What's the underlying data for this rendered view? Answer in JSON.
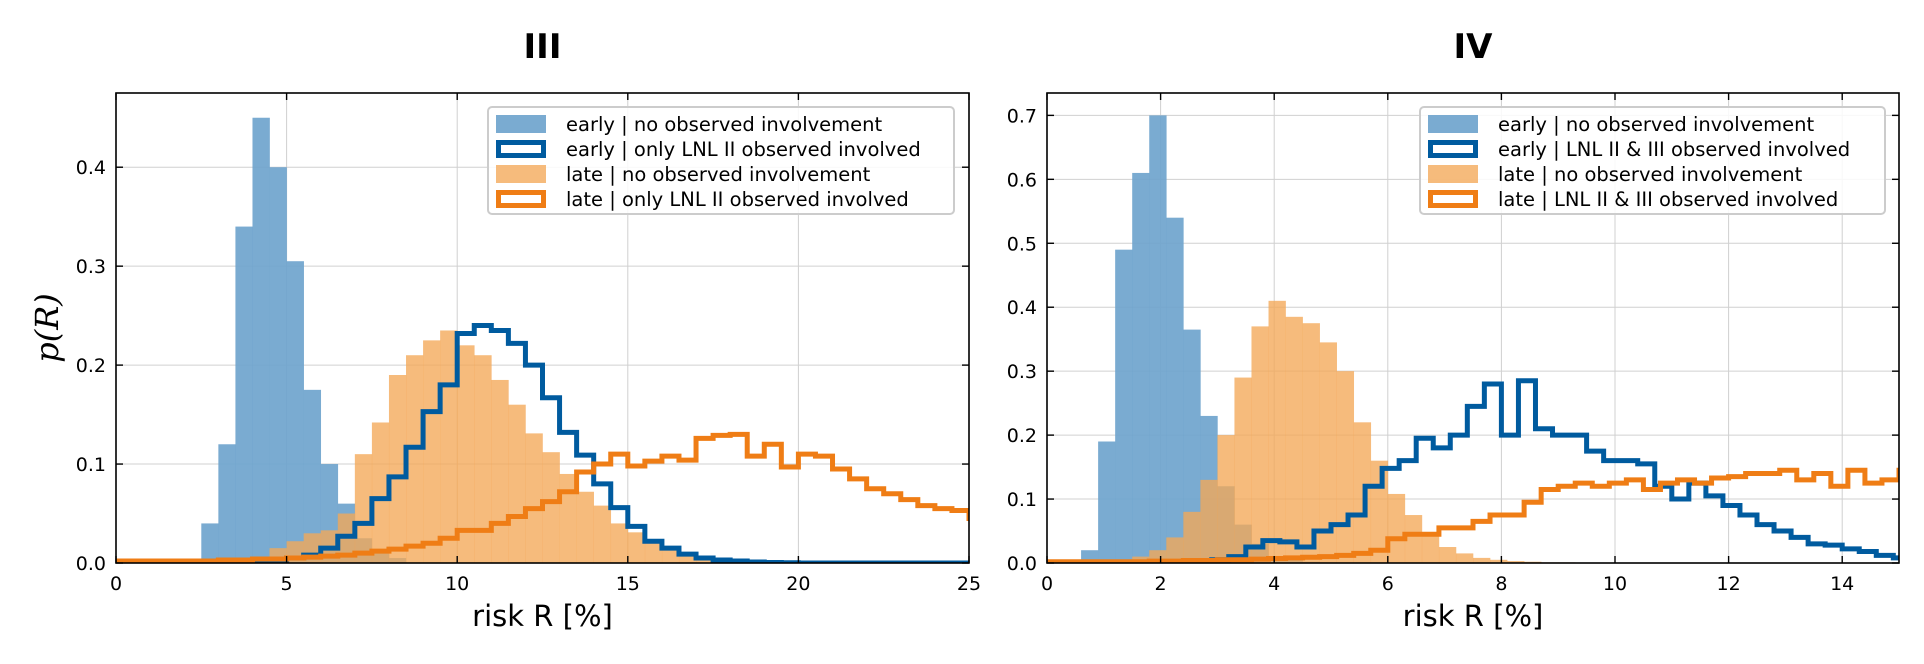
{
  "figure": {
    "ylabel": "p(R)"
  },
  "chart_data": [
    {
      "type": "histogram",
      "title": "III",
      "xlabel": "risk R [%]",
      "ylabel": "p(R)",
      "xlim": [
        0,
        25
      ],
      "ylim": [
        0,
        0.475
      ],
      "xticks": [
        0,
        5,
        10,
        15,
        20,
        25
      ],
      "yticks": [
        0.0,
        0.1,
        0.2,
        0.3,
        0.4
      ],
      "ytick_labels": [
        "0.0",
        "0.1",
        "0.2",
        "0.3",
        "0.4"
      ],
      "grid": true,
      "legend_position": "top-right",
      "series": [
        {
          "name": "early | no observed involvement",
          "style": "filled",
          "color": "#6fa4cd",
          "opacity": 0.92,
          "x0": 2.5,
          "bin_width": 0.5,
          "values": [
            0.04,
            0.12,
            0.34,
            0.45,
            0.4,
            0.305,
            0.175,
            0.1,
            0.06,
            0.025,
            0.01,
            0.005
          ]
        },
        {
          "name": "early | only LNL II observed involved",
          "style": "step",
          "color": "#005b9f",
          "linewidth": 5,
          "x0": 4.0,
          "bin_width": 0.5,
          "values": [
            0,
            0.003,
            0.005,
            0.008,
            0.015,
            0.027,
            0.04,
            0.065,
            0.087,
            0.117,
            0.153,
            0.18,
            0.232,
            0.24,
            0.235,
            0.222,
            0.2,
            0.167,
            0.132,
            0.109,
            0.08,
            0.056,
            0.037,
            0.022,
            0.015,
            0.009,
            0.005,
            0.003,
            0.002,
            0.001,
            0.0005,
            0.0003,
            0,
            0,
            0,
            0,
            0,
            0,
            0,
            0,
            0,
            0
          ]
        },
        {
          "name": "late | no observed involvement",
          "style": "filled",
          "color": "#f4a857",
          "opacity": 0.78,
          "x0": 0.0,
          "bin_width": 0.5,
          "values": [
            0.002,
            0.002,
            0.002,
            0.002,
            0.002,
            0.002,
            0.003,
            0.004,
            0.005,
            0.015,
            0.022,
            0.03,
            0.033,
            0.05,
            0.11,
            0.142,
            0.19,
            0.21,
            0.225,
            0.235,
            0.22,
            0.21,
            0.185,
            0.16,
            0.131,
            0.112,
            0.09,
            0.072,
            0.058,
            0.04,
            0.031,
            0.023,
            0.015,
            0.01,
            0.007,
            0.005,
            0.003,
            0.002,
            0.001,
            0.001,
            0.001,
            0.0005,
            0.0005,
            0.0003,
            0.0003,
            0.0002,
            0.0002,
            0.0001,
            0.0001,
            0.0001
          ]
        },
        {
          "name": "late | only LNL II observed involved",
          "style": "step",
          "color": "#ef7d15",
          "linewidth": 5,
          "x0": 0.0,
          "bin_width": 0.5,
          "values": [
            0.002,
            0.002,
            0.002,
            0.002,
            0.002,
            0.002,
            0.003,
            0.003,
            0.004,
            0.004,
            0.005,
            0.006,
            0.007,
            0.008,
            0.01,
            0.012,
            0.014,
            0.017,
            0.02,
            0.025,
            0.033,
            0.033,
            0.04,
            0.047,
            0.055,
            0.062,
            0.072,
            0.092,
            0.1,
            0.11,
            0.098,
            0.103,
            0.108,
            0.104,
            0.126,
            0.129,
            0.13,
            0.108,
            0.12,
            0.097,
            0.11,
            0.108,
            0.095,
            0.085,
            0.075,
            0.07,
            0.064,
            0.058,
            0.055,
            0.053,
            0.045,
            0.038,
            0.03,
            0.025,
            0.023,
            0.027,
            0.022,
            0.015,
            0.018,
            0.02,
            0.013,
            0.013,
            0.01,
            0.01,
            0.008,
            0.01,
            0.012,
            0.008,
            0.006,
            0.006
          ]
        }
      ]
    },
    {
      "type": "histogram",
      "title": "IV",
      "xlabel": "risk R [%]",
      "ylabel": "",
      "xlim": [
        0,
        15
      ],
      "ylim": [
        0,
        0.735
      ],
      "xticks": [
        0,
        2,
        4,
        6,
        8,
        10,
        12,
        14
      ],
      "yticks": [
        0.0,
        0.1,
        0.2,
        0.3,
        0.4,
        0.5,
        0.6,
        0.7
      ],
      "ytick_labels": [
        "0.0",
        "0.1",
        "0.2",
        "0.3",
        "0.4",
        "0.5",
        "0.6",
        "0.7"
      ],
      "grid": true,
      "legend_position": "top-right",
      "series": [
        {
          "name": "early | no observed involvement",
          "style": "filled",
          "color": "#6fa4cd",
          "opacity": 0.92,
          "x0": 0.6,
          "bin_width": 0.3,
          "values": [
            0.02,
            0.19,
            0.49,
            0.61,
            0.7,
            0.54,
            0.365,
            0.23,
            0.12,
            0.06,
            0.03,
            0.01,
            0.005,
            0.002
          ]
        },
        {
          "name": "early | LNL II & III observed involved",
          "style": "step",
          "color": "#005b9f",
          "linewidth": 5,
          "x0": 2.0,
          "bin_width": 0.3,
          "values": [
            0,
            0.002,
            0.003,
            0.005,
            0.01,
            0.025,
            0.035,
            0.033,
            0.025,
            0.05,
            0.06,
            0.075,
            0.12,
            0.148,
            0.16,
            0.195,
            0.18,
            0.2,
            0.245,
            0.28,
            0.2,
            0.285,
            0.21,
            0.2,
            0.2,
            0.175,
            0.16,
            0.16,
            0.155,
            0.12,
            0.1,
            0.125,
            0.105,
            0.09,
            0.075,
            0.06,
            0.05,
            0.04,
            0.03,
            0.028,
            0.022,
            0.018,
            0.012,
            0.008,
            0.006,
            0.004,
            0.003,
            0.002,
            0.001,
            0.001,
            0.0005,
            0.0003,
            0.0002,
            0.0001,
            0.0001,
            0.0001,
            0.0001,
            0.0001,
            0.0001,
            0.0001,
            0.0001,
            0.0001,
            0.0001,
            0
          ]
        },
        {
          "name": "late | no observed involvement",
          "style": "filled",
          "color": "#f4a857",
          "opacity": 0.78,
          "x0": 0.0,
          "bin_width": 0.3,
          "values": [
            0.002,
            0.002,
            0.003,
            0.004,
            0.005,
            0.01,
            0.02,
            0.04,
            0.08,
            0.13,
            0.2,
            0.29,
            0.37,
            0.41,
            0.385,
            0.375,
            0.345,
            0.3,
            0.22,
            0.16,
            0.108,
            0.075,
            0.045,
            0.025,
            0.015,
            0.008,
            0.005,
            0.003,
            0.002,
            0.001,
            0.001,
            0.0005,
            0.0003,
            0.0002
          ]
        },
        {
          "name": "late | LNL II & III observed involved",
          "style": "step",
          "color": "#ef7d15",
          "linewidth": 5,
          "x0": 0.0,
          "bin_width": 0.3,
          "values": [
            0.002,
            0.002,
            0.002,
            0.002,
            0.002,
            0.002,
            0.003,
            0.003,
            0.004,
            0.004,
            0.005,
            0.005,
            0.006,
            0.007,
            0.008,
            0.009,
            0.01,
            0.012,
            0.015,
            0.02,
            0.038,
            0.045,
            0.045,
            0.055,
            0.055,
            0.065,
            0.075,
            0.075,
            0.095,
            0.115,
            0.12,
            0.125,
            0.12,
            0.125,
            0.13,
            0.115,
            0.125,
            0.13,
            0.125,
            0.133,
            0.135,
            0.14,
            0.14,
            0.145,
            0.13,
            0.14,
            0.12,
            0.145,
            0.125,
            0.13,
            0.145,
            0.123,
            0.12,
            0.11,
            0.1,
            0.1,
            0.11,
            0.095,
            0.09,
            0.085,
            0.08,
            0.075,
            0.06,
            0.055,
            0.055,
            0.05,
            0.045,
            0.04,
            0.035,
            0.03,
            0.025,
            0.02,
            0.015,
            0.012,
            0.01,
            0.008,
            0.006,
            0.004,
            0.003,
            0.002
          ]
        }
      ]
    }
  ]
}
